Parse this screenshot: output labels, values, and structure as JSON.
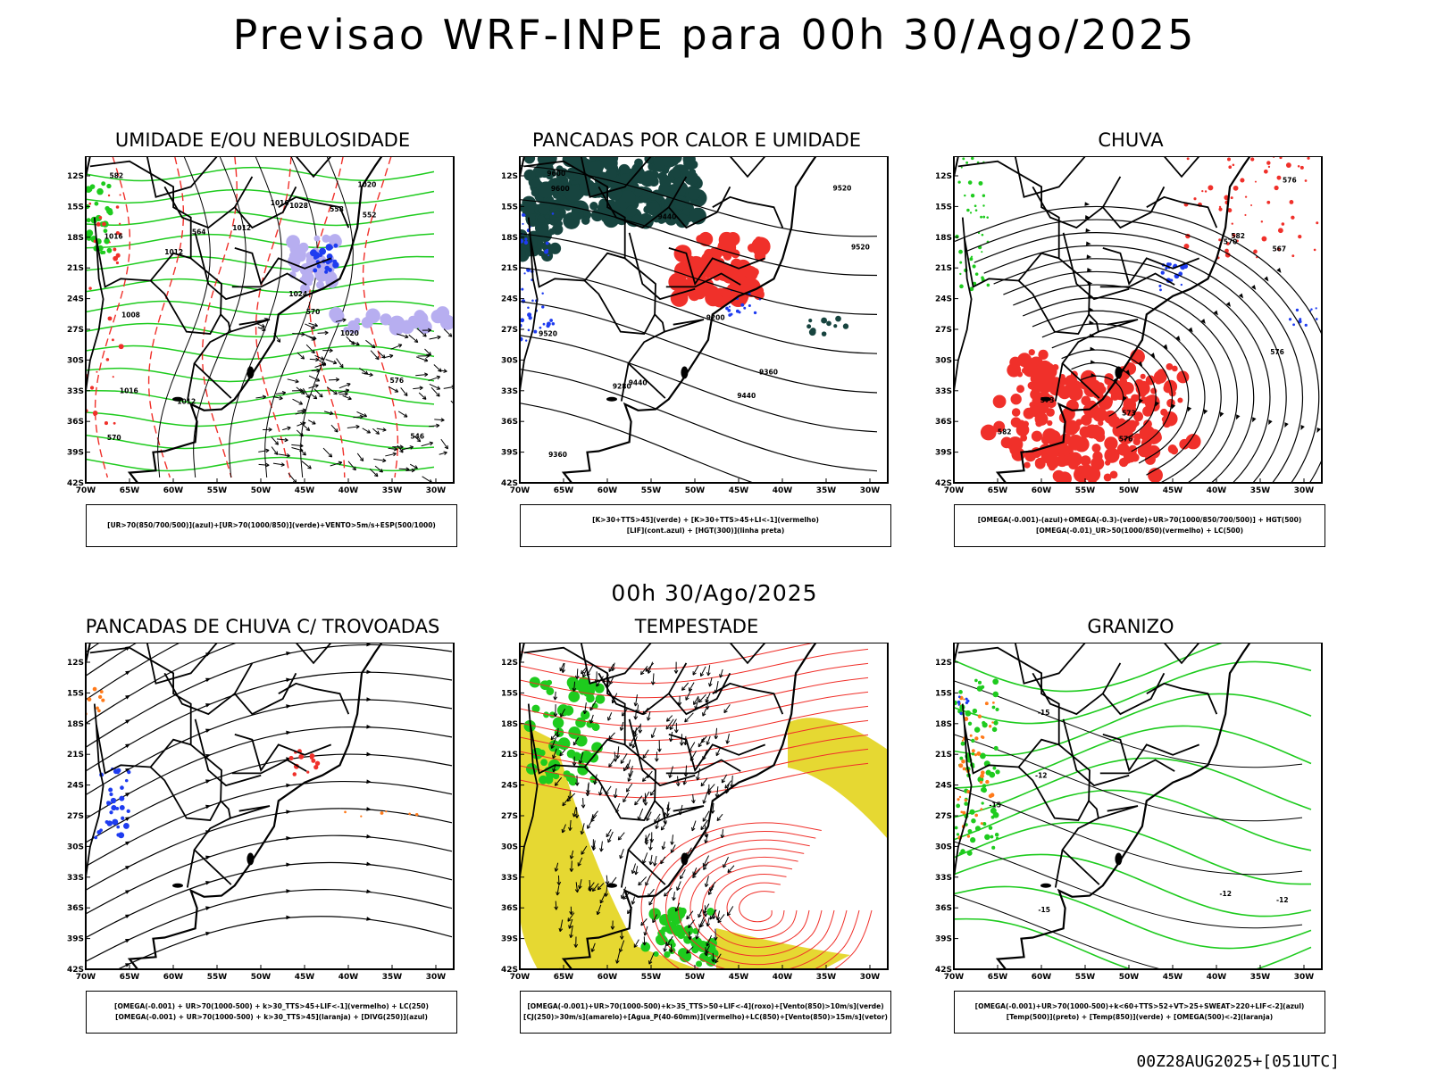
{
  "header": {
    "title": "Previsao WRF-INPE  para 00h 30/Ago/2025"
  },
  "subheader": {
    "title": "00h 30/Ago/2025"
  },
  "footer": {
    "run": "00Z28AUG2025+[051UTC]"
  },
  "axes": {
    "y_ticks": [
      "12S",
      "15S",
      "18S",
      "21S",
      "24S",
      "27S",
      "30S",
      "33S",
      "36S",
      "39S",
      "42S"
    ],
    "x_ticks": [
      "70W",
      "65W",
      "60W",
      "55W",
      "50W",
      "45W",
      "40W",
      "35W",
      "30W"
    ]
  },
  "colors": {
    "red": "#f0302a",
    "green": "#1ecb1e",
    "blue": "#1e3cf0",
    "teal": "#17443f",
    "yellow": "#e6d832",
    "lavender": "#b7aef0",
    "orange": "#ff7a1a",
    "black": "#000000"
  },
  "panels": [
    {
      "title": "UMIDADE E/OU NEBULOSIDADE",
      "legend_lines": [
        "[UR>70(850/700/500)](azul)+[UR>70(1000/850)](verde)+VENTO>5m/s+ESP(500/1000)"
      ],
      "contour_labels": [
        "1016",
        "1012",
        "1008",
        "1012",
        "1012",
        "1016",
        "1020",
        "1024",
        "1028",
        "1016",
        "1020",
        "570",
        "576",
        "582",
        "570",
        "564",
        "558",
        "552",
        "546"
      ]
    },
    {
      "title": "PANCADAS POR CALOR E UMIDADE",
      "legend_lines": [
        "[K>30+TTS>45](verde) + [K>30+TTS>45+LI<-1](vermelho)",
        "[LIF](cont.azul) + [HGT(300)](linha preta)"
      ],
      "contour_labels": [
        "9600",
        "9600",
        "9520",
        "9520",
        "9520",
        "9440",
        "9440",
        "9440",
        "9360",
        "9360",
        "9280",
        "9200"
      ]
    },
    {
      "title": "CHUVA",
      "legend_lines": [
        "[OMEGA(-0.001)-(azul)+OMEGA(-0.3)-(verde)+UR>70(1000/850/700/500)] + HGT(500)",
        "[OMEGA(-0.01)_UR>50(1000/850)(vermelho) + LC(500)"
      ],
      "contour_labels": [
        "582",
        "582",
        "576",
        "576",
        "570",
        "573",
        "567",
        "576",
        "573"
      ]
    },
    {
      "title": "PANCADAS DE CHUVA C/ TROVOADAS",
      "legend_lines": [
        "[OMEGA(-0.001) + UR>70(1000-500) + k>30_TTS>45+LIF<-1](vermelho) + LC(250)",
        "[OMEGA(-0.001) + UR>70(1000-500) + k>30_TTS>45](laranja) + [DIVG(250)](azul)"
      ],
      "contour_labels": []
    },
    {
      "title": "TEMPESTADE",
      "legend_lines": [
        "[OMEGA(-0.001)+UR>70(1000-500)+k>35_TTS>50+LIF<-4](roxo)+[Vento(850)>10m/s](verde)",
        "[CJ(250)>30m/s](amarelo)+[Agua_P(40-60mm)](vermelho)+LC(850)+[Vento(850)>15m/s](vetor)"
      ],
      "contour_labels": []
    },
    {
      "title": "GRANIZO",
      "legend_lines": [
        "[OMEGA(-0.001)+UR>70(1000-500)+k<60+TTS>52+VT>25+SWEAT>220+LIF<-2](azul)",
        "[Temp(500)](preto) + [Temp(850)](verde) + [OMEGA(500)<-2](laranja)"
      ],
      "contour_labels": [
        "-12",
        "-15",
        "-12",
        "-15",
        "-15",
        "-12"
      ]
    }
  ]
}
